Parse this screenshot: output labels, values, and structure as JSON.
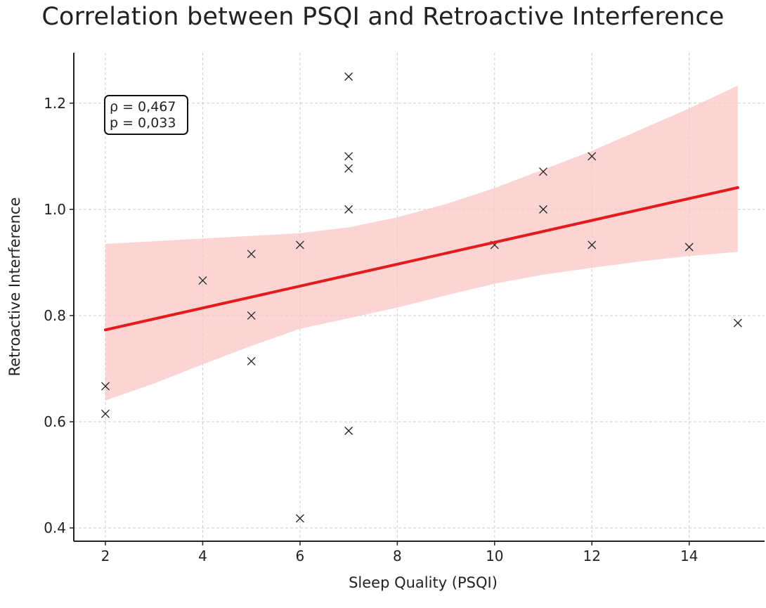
{
  "chart_data": {
    "type": "scatter",
    "title": "Correlation between PSQI and Retroactive Interference",
    "xlabel": "Sleep Quality (PSQI)",
    "ylabel": "Retroactive Interference",
    "xlim": [
      1.35,
      15.55
    ],
    "ylim": [
      0.375,
      1.295
    ],
    "xticks": [
      2,
      4,
      6,
      8,
      10,
      12,
      14
    ],
    "yticks": [
      0.4,
      0.6,
      0.8,
      1.0,
      1.2
    ],
    "ytick_labels": [
      "0.4",
      "0.6",
      "0.8",
      "1.0",
      "1.2"
    ],
    "grid": true,
    "marker": "x",
    "points": [
      {
        "x": 2,
        "y": 0.667
      },
      {
        "x": 2,
        "y": 0.615
      },
      {
        "x": 4,
        "y": 0.866
      },
      {
        "x": 5,
        "y": 0.916
      },
      {
        "x": 5,
        "y": 0.8
      },
      {
        "x": 5,
        "y": 0.714
      },
      {
        "x": 6,
        "y": 0.933
      },
      {
        "x": 6,
        "y": 0.418
      },
      {
        "x": 7,
        "y": 1.25
      },
      {
        "x": 7,
        "y": 1.1
      },
      {
        "x": 7,
        "y": 1.077
      },
      {
        "x": 7,
        "y": 1.0
      },
      {
        "x": 7,
        "y": 0.583
      },
      {
        "x": 10,
        "y": 0.933
      },
      {
        "x": 11,
        "y": 1.071
      },
      {
        "x": 11,
        "y": 1.0
      },
      {
        "x": 12,
        "y": 1.1
      },
      {
        "x": 12,
        "y": 0.933
      },
      {
        "x": 14,
        "y": 0.929
      },
      {
        "x": 15,
        "y": 0.786
      }
    ],
    "regression": {
      "x0": 2,
      "y0": 0.773,
      "x1": 15,
      "y1": 1.041
    },
    "confidence_band": {
      "x": [
        2,
        3,
        4,
        5,
        6,
        7,
        8,
        9,
        10,
        11,
        12,
        13,
        14,
        15
      ],
      "upper": [
        0.935,
        0.94,
        0.945,
        0.95,
        0.955,
        0.966,
        0.985,
        1.01,
        1.04,
        1.075,
        1.11,
        1.15,
        1.19,
        1.233
      ],
      "lower": [
        0.64,
        0.672,
        0.708,
        0.743,
        0.775,
        0.795,
        0.815,
        0.838,
        0.86,
        0.877,
        0.89,
        0.902,
        0.912,
        0.92
      ]
    },
    "colors": {
      "regression_line": "#e41a1c",
      "band_fill": "#f9c5c5",
      "marker": "#222222",
      "grid": "#cccccc",
      "axis": "#222222"
    },
    "annotation": {
      "lines": [
        "ρ = 0,467",
        "p = 0,033"
      ],
      "position": "top-left"
    }
  }
}
